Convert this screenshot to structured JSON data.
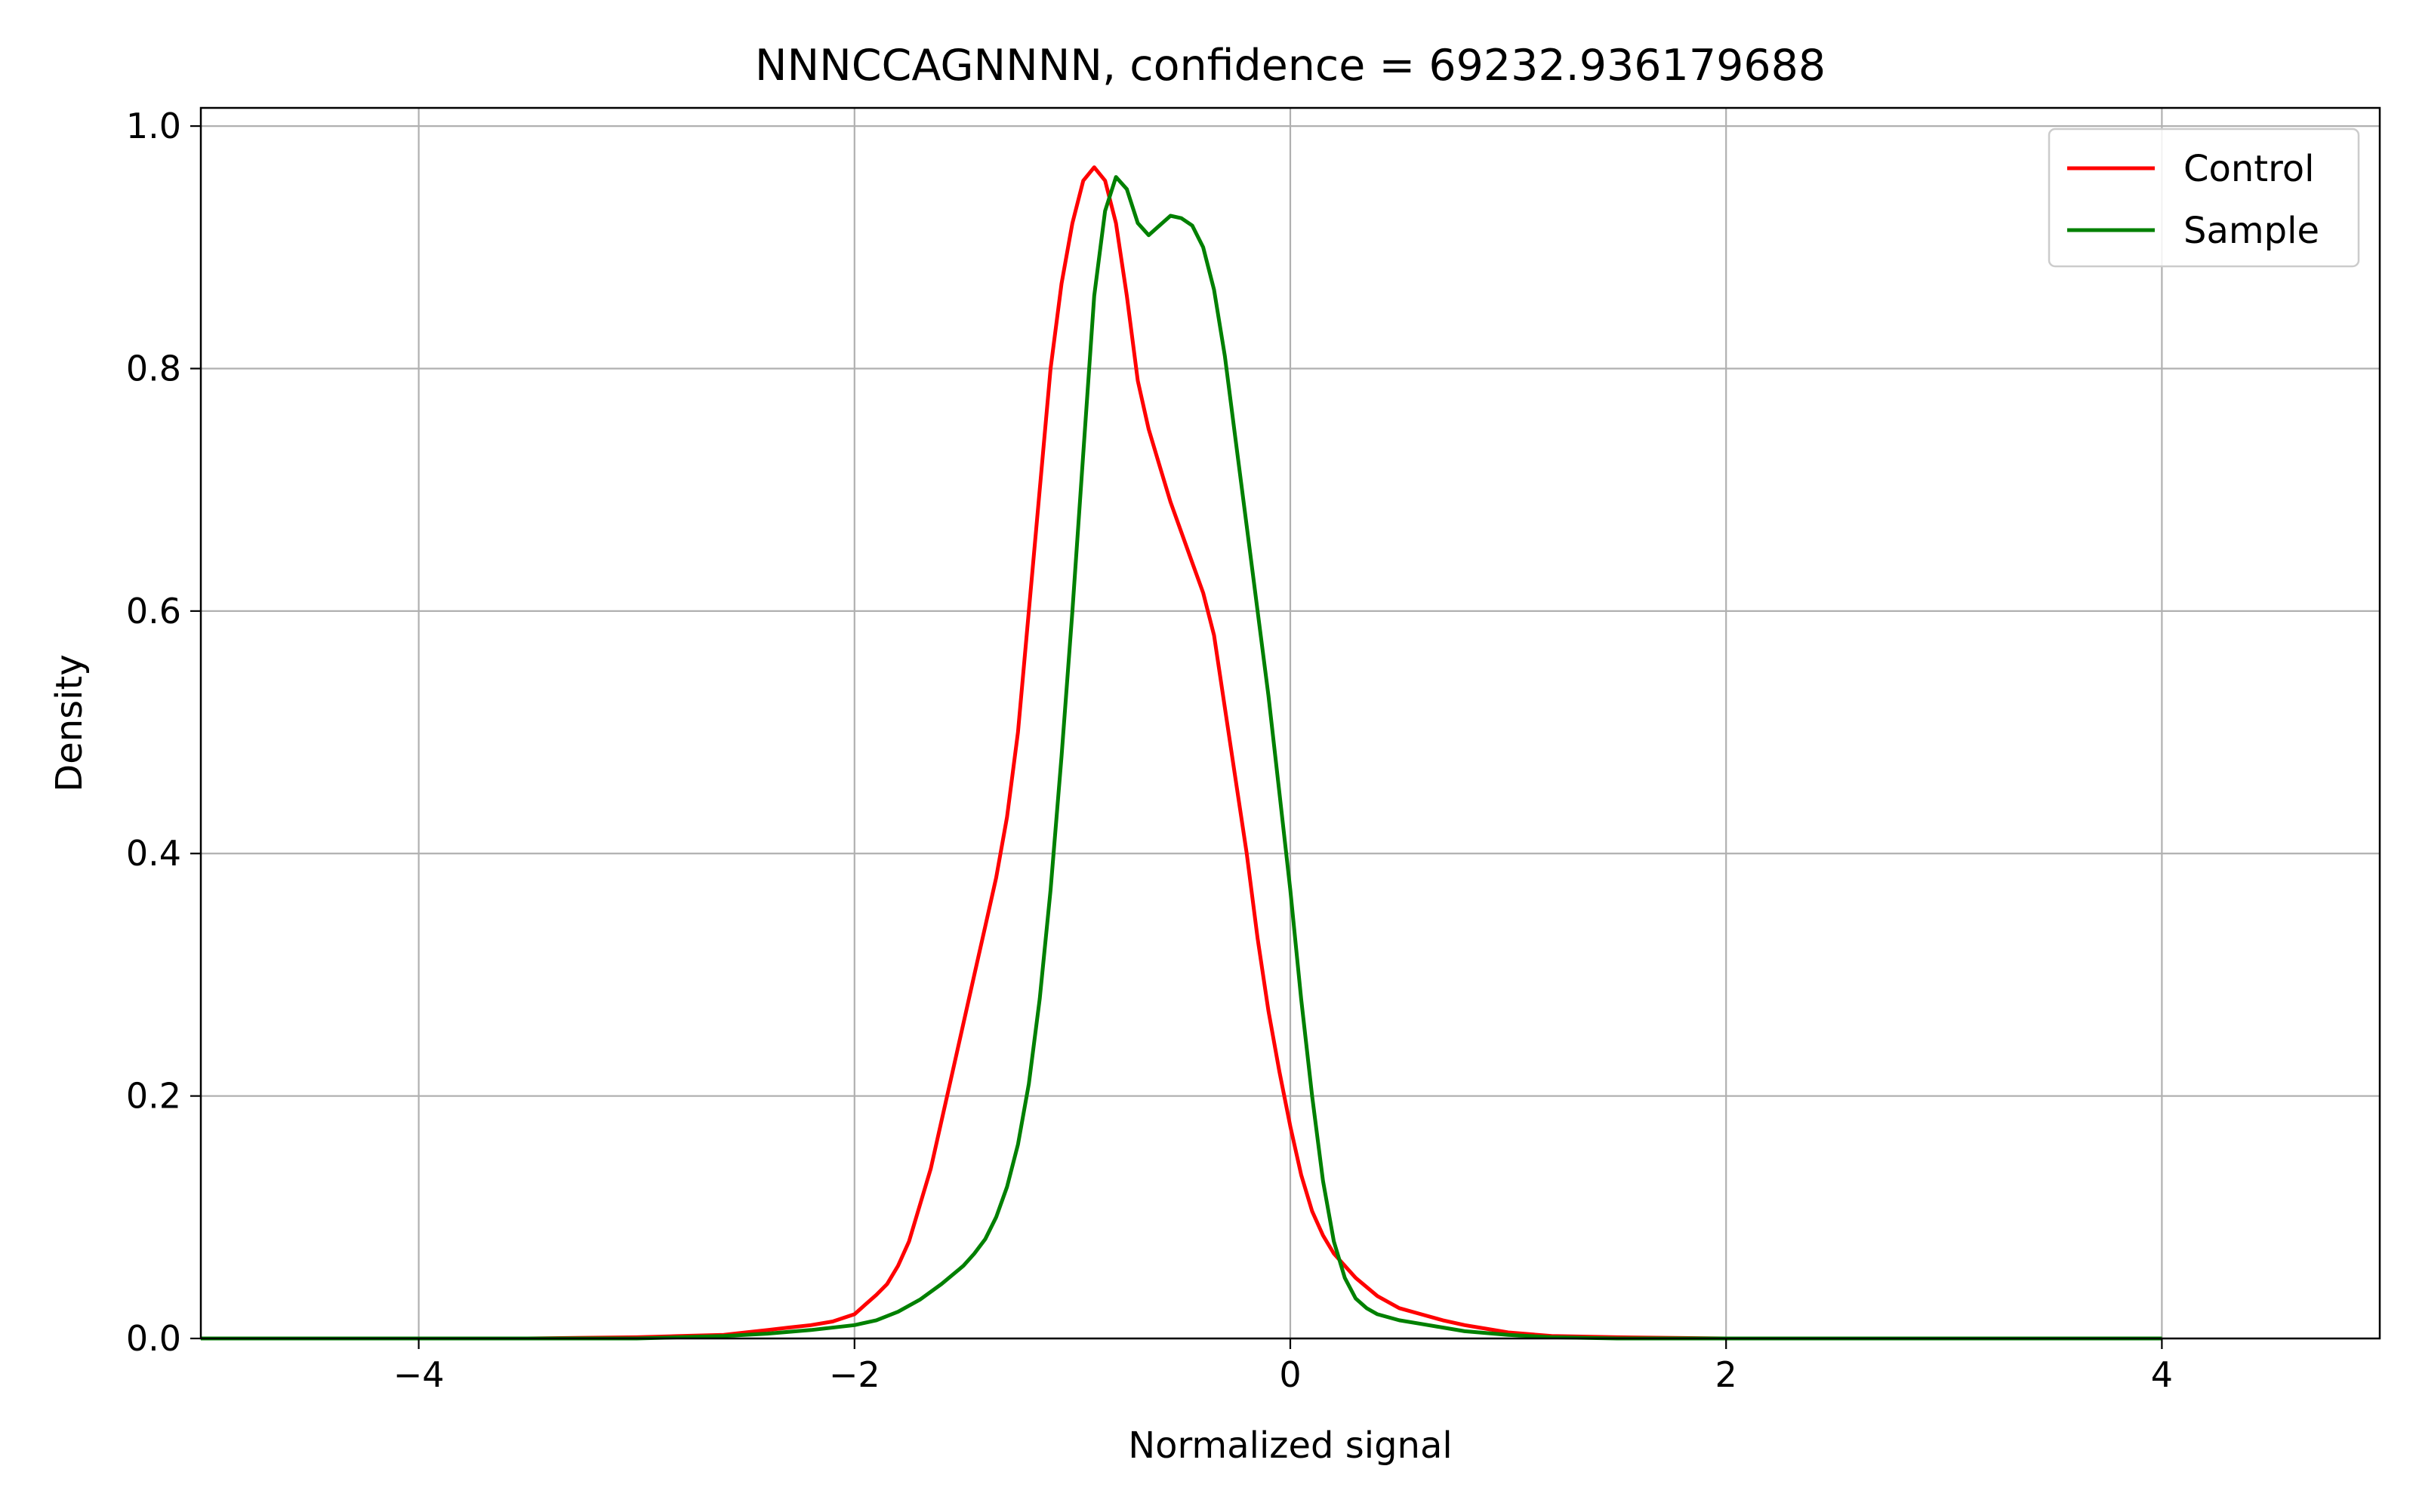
{
  "chart_data": {
    "type": "line",
    "title": "NNNCCAGNNNN, confidence = 69232.936179688",
    "xlabel": "Normalized signal",
    "ylabel": "Density",
    "xlim": [
      -5,
      5
    ],
    "ylim": [
      0,
      1.015
    ],
    "x_ticks": [
      -4,
      -2,
      0,
      2,
      4
    ],
    "x_tick_labels": [
      "−4",
      "−2",
      "0",
      "2",
      "4"
    ],
    "y_ticks": [
      0.0,
      0.2,
      0.4,
      0.6,
      0.8,
      1.0
    ],
    "y_tick_labels": [
      "0.0",
      "0.2",
      "0.4",
      "0.6",
      "0.8",
      "1.0"
    ],
    "grid": true,
    "legend_position": "top-right",
    "series": [
      {
        "name": "Control",
        "color": "#ff0000",
        "points": [
          [
            -5.0,
            0.0
          ],
          [
            -4.0,
            0.0
          ],
          [
            -3.5,
            0.0
          ],
          [
            -3.0,
            0.001
          ],
          [
            -2.8,
            0.002
          ],
          [
            -2.6,
            0.003
          ],
          [
            -2.5,
            0.005
          ],
          [
            -2.4,
            0.007
          ],
          [
            -2.3,
            0.009
          ],
          [
            -2.2,
            0.011
          ],
          [
            -2.1,
            0.014
          ],
          [
            -2.0,
            0.02
          ],
          [
            -1.95,
            0.028
          ],
          [
            -1.9,
            0.036
          ],
          [
            -1.85,
            0.045
          ],
          [
            -1.8,
            0.06
          ],
          [
            -1.75,
            0.08
          ],
          [
            -1.7,
            0.11
          ],
          [
            -1.65,
            0.14
          ],
          [
            -1.6,
            0.18
          ],
          [
            -1.55,
            0.22
          ],
          [
            -1.5,
            0.26
          ],
          [
            -1.45,
            0.3
          ],
          [
            -1.4,
            0.34
          ],
          [
            -1.35,
            0.38
          ],
          [
            -1.3,
            0.43
          ],
          [
            -1.25,
            0.5
          ],
          [
            -1.2,
            0.6
          ],
          [
            -1.15,
            0.7
          ],
          [
            -1.1,
            0.8
          ],
          [
            -1.05,
            0.87
          ],
          [
            -1.0,
            0.92
          ],
          [
            -0.95,
            0.955
          ],
          [
            -0.9,
            0.966
          ],
          [
            -0.85,
            0.955
          ],
          [
            -0.8,
            0.92
          ],
          [
            -0.75,
            0.86
          ],
          [
            -0.7,
            0.79
          ],
          [
            -0.65,
            0.75
          ],
          [
            -0.6,
            0.72
          ],
          [
            -0.55,
            0.69
          ],
          [
            -0.5,
            0.665
          ],
          [
            -0.45,
            0.64
          ],
          [
            -0.4,
            0.615
          ],
          [
            -0.35,
            0.58
          ],
          [
            -0.3,
            0.52
          ],
          [
            -0.25,
            0.46
          ],
          [
            -0.2,
            0.4
          ],
          [
            -0.15,
            0.33
          ],
          [
            -0.1,
            0.27
          ],
          [
            -0.05,
            0.22
          ],
          [
            0.0,
            0.175
          ],
          [
            0.05,
            0.135
          ],
          [
            0.1,
            0.105
          ],
          [
            0.15,
            0.085
          ],
          [
            0.2,
            0.07
          ],
          [
            0.3,
            0.05
          ],
          [
            0.4,
            0.035
          ],
          [
            0.5,
            0.025
          ],
          [
            0.6,
            0.02
          ],
          [
            0.7,
            0.015
          ],
          [
            0.8,
            0.011
          ],
          [
            0.9,
            0.008
          ],
          [
            1.0,
            0.005
          ],
          [
            1.2,
            0.002
          ],
          [
            1.5,
            0.001
          ],
          [
            2.0,
            0.0
          ],
          [
            2.5,
            0.0
          ],
          [
            3.0,
            0.0
          ],
          [
            3.5,
            0.0
          ],
          [
            4.0,
            0.0
          ]
        ]
      },
      {
        "name": "Sample",
        "color": "#008000",
        "points": [
          [
            -5.0,
            0.0
          ],
          [
            -4.0,
            0.0
          ],
          [
            -3.5,
            0.0
          ],
          [
            -3.0,
            0.0
          ],
          [
            -2.8,
            0.001
          ],
          [
            -2.6,
            0.002
          ],
          [
            -2.4,
            0.004
          ],
          [
            -2.2,
            0.007
          ],
          [
            -2.0,
            0.011
          ],
          [
            -1.9,
            0.015
          ],
          [
            -1.8,
            0.022
          ],
          [
            -1.7,
            0.032
          ],
          [
            -1.6,
            0.045
          ],
          [
            -1.5,
            0.06
          ],
          [
            -1.45,
            0.07
          ],
          [
            -1.4,
            0.082
          ],
          [
            -1.35,
            0.1
          ],
          [
            -1.3,
            0.125
          ],
          [
            -1.25,
            0.16
          ],
          [
            -1.2,
            0.21
          ],
          [
            -1.15,
            0.28
          ],
          [
            -1.1,
            0.37
          ],
          [
            -1.05,
            0.48
          ],
          [
            -1.0,
            0.6
          ],
          [
            -0.95,
            0.73
          ],
          [
            -0.9,
            0.86
          ],
          [
            -0.85,
            0.93
          ],
          [
            -0.8,
            0.958
          ],
          [
            -0.75,
            0.948
          ],
          [
            -0.7,
            0.92
          ],
          [
            -0.65,
            0.91
          ],
          [
            -0.6,
            0.918
          ],
          [
            -0.55,
            0.926
          ],
          [
            -0.5,
            0.924
          ],
          [
            -0.45,
            0.918
          ],
          [
            -0.4,
            0.9
          ],
          [
            -0.35,
            0.865
          ],
          [
            -0.3,
            0.81
          ],
          [
            -0.25,
            0.74
          ],
          [
            -0.2,
            0.67
          ],
          [
            -0.15,
            0.6
          ],
          [
            -0.1,
            0.53
          ],
          [
            -0.05,
            0.45
          ],
          [
            0.0,
            0.37
          ],
          [
            0.05,
            0.28
          ],
          [
            0.1,
            0.2
          ],
          [
            0.15,
            0.13
          ],
          [
            0.2,
            0.08
          ],
          [
            0.25,
            0.05
          ],
          [
            0.3,
            0.033
          ],
          [
            0.35,
            0.025
          ],
          [
            0.4,
            0.02
          ],
          [
            0.5,
            0.015
          ],
          [
            0.6,
            0.012
          ],
          [
            0.7,
            0.009
          ],
          [
            0.8,
            0.006
          ],
          [
            1.0,
            0.003
          ],
          [
            1.2,
            0.001
          ],
          [
            1.5,
            0.0
          ],
          [
            2.0,
            0.0
          ],
          [
            2.5,
            0.0
          ],
          [
            3.0,
            0.0
          ],
          [
            3.5,
            0.0
          ],
          [
            4.0,
            0.0
          ]
        ]
      }
    ]
  }
}
